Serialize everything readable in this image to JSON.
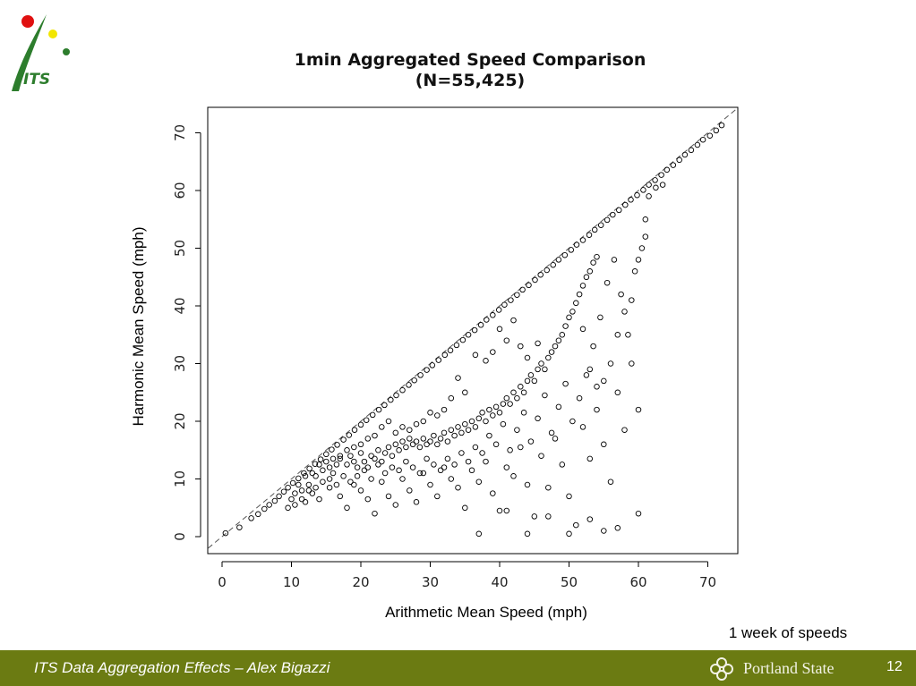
{
  "logo": {
    "text": "ITS"
  },
  "chart_data": {
    "type": "scatter",
    "title": "1min Aggregated Speed Comparison",
    "subtitle": "(N=55,425)",
    "xlabel": "Arithmetic Mean Speed (mph)",
    "ylabel": "Harmonic Mean Speed (mph)",
    "xlim": [
      -2,
      75
    ],
    "ylim": [
      -2,
      74
    ],
    "xticks": [
      0,
      10,
      20,
      30,
      40,
      50,
      60,
      70
    ],
    "yticks": [
      0,
      10,
      20,
      30,
      40,
      50,
      60,
      70
    ],
    "reference_line": "y = x (dashed)",
    "grid": false,
    "marker": "open circle",
    "points": [
      [
        0.5,
        0.6
      ],
      [
        2.5,
        1.6
      ],
      [
        4.2,
        3.2
      ],
      [
        5.2,
        3.9
      ],
      [
        6.1,
        4.8
      ],
      [
        6.8,
        5.5
      ],
      [
        7.6,
        6.2
      ],
      [
        8.2,
        7.0
      ],
      [
        8.9,
        7.8
      ],
      [
        9.5,
        8.5
      ],
      [
        10.2,
        9.3
      ],
      [
        11.0,
        10.1
      ],
      [
        11.8,
        11.0
      ],
      [
        12.6,
        11.8
      ],
      [
        13.4,
        12.6
      ],
      [
        14.2,
        13.4
      ],
      [
        15.0,
        14.3
      ],
      [
        15.8,
        15.1
      ],
      [
        16.6,
        15.9
      ],
      [
        17.5,
        16.8
      ],
      [
        18.3,
        17.6
      ],
      [
        19.1,
        18.5
      ],
      [
        20.0,
        19.4
      ],
      [
        20.8,
        20.2
      ],
      [
        21.7,
        21.1
      ],
      [
        22.6,
        22.0
      ],
      [
        23.4,
        22.8
      ],
      [
        24.3,
        23.7
      ],
      [
        25.1,
        24.5
      ],
      [
        26.0,
        25.4
      ],
      [
        26.9,
        26.3
      ],
      [
        27.7,
        27.1
      ],
      [
        28.6,
        28.0
      ],
      [
        29.5,
        28.9
      ],
      [
        30.3,
        29.7
      ],
      [
        31.2,
        30.6
      ],
      [
        32.1,
        31.5
      ],
      [
        32.9,
        32.3
      ],
      [
        33.8,
        33.2
      ],
      [
        34.7,
        34.1
      ],
      [
        35.5,
        35.0
      ],
      [
        36.4,
        35.8
      ],
      [
        37.3,
        36.7
      ],
      [
        38.1,
        37.6
      ],
      [
        39.0,
        38.4
      ],
      [
        39.9,
        39.3
      ],
      [
        40.7,
        40.2
      ],
      [
        41.6,
        41.0
      ],
      [
        42.5,
        41.9
      ],
      [
        43.3,
        42.8
      ],
      [
        44.2,
        43.6
      ],
      [
        45.1,
        44.5
      ],
      [
        45.9,
        45.4
      ],
      [
        46.8,
        46.2
      ],
      [
        47.7,
        47.1
      ],
      [
        48.5,
        48.0
      ],
      [
        49.4,
        48.8
      ],
      [
        50.3,
        49.7
      ],
      [
        51.1,
        50.6
      ],
      [
        52.0,
        51.4
      ],
      [
        52.9,
        52.3
      ],
      [
        53.7,
        53.2
      ],
      [
        54.6,
        54.0
      ],
      [
        55.5,
        54.9
      ],
      [
        56.3,
        55.8
      ],
      [
        57.2,
        56.6
      ],
      [
        58.1,
        57.5
      ],
      [
        58.9,
        58.4
      ],
      [
        59.8,
        59.2
      ],
      [
        60.7,
        60.1
      ],
      [
        61.5,
        61.0
      ],
      [
        62.4,
        61.8
      ],
      [
        63.3,
        62.7
      ],
      [
        64.1,
        63.6
      ],
      [
        65.0,
        64.4
      ],
      [
        65.9,
        65.3
      ],
      [
        66.7,
        66.2
      ],
      [
        67.6,
        67.0
      ],
      [
        68.5,
        67.9
      ],
      [
        69.3,
        68.8
      ],
      [
        70.3,
        69.5
      ],
      [
        71.2,
        70.4
      ],
      [
        72.0,
        71.3
      ],
      [
        10.5,
        7.5
      ],
      [
        11.5,
        8.0
      ],
      [
        12.5,
        9.0
      ],
      [
        13.5,
        10.5
      ],
      [
        14.5,
        11.5
      ],
      [
        15.5,
        12.0
      ],
      [
        16.0,
        11.0
      ],
      [
        16.5,
        12.5
      ],
      [
        17.0,
        13.5
      ],
      [
        18.0,
        12.5
      ],
      [
        18.5,
        14.0
      ],
      [
        19.0,
        13.0
      ],
      [
        19.5,
        12.0
      ],
      [
        20.0,
        14.5
      ],
      [
        20.5,
        13.0
      ],
      [
        21.0,
        12.0
      ],
      [
        21.5,
        14.0
      ],
      [
        22.0,
        13.5
      ],
      [
        22.5,
        15.0
      ],
      [
        23.0,
        13.0
      ],
      [
        23.5,
        14.5
      ],
      [
        24.0,
        15.5
      ],
      [
        24.5,
        14.0
      ],
      [
        25.0,
        16.0
      ],
      [
        25.5,
        15.0
      ],
      [
        26.0,
        16.5
      ],
      [
        26.5,
        15.5
      ],
      [
        27.0,
        17.0
      ],
      [
        27.5,
        16.0
      ],
      [
        28.0,
        16.5
      ],
      [
        28.5,
        15.5
      ],
      [
        29.0,
        17.0
      ],
      [
        29.5,
        16.0
      ],
      [
        30.0,
        16.5
      ],
      [
        30.5,
        17.5
      ],
      [
        31.0,
        16.0
      ],
      [
        31.5,
        17.0
      ],
      [
        32.0,
        18.0
      ],
      [
        32.5,
        16.5
      ],
      [
        33.0,
        18.5
      ],
      [
        33.5,
        17.5
      ],
      [
        34.0,
        19.0
      ],
      [
        34.5,
        18.0
      ],
      [
        35.0,
        19.5
      ],
      [
        35.5,
        18.5
      ],
      [
        36.0,
        20.0
      ],
      [
        36.5,
        19.0
      ],
      [
        37.0,
        20.5
      ],
      [
        37.5,
        21.5
      ],
      [
        38.0,
        20.0
      ],
      [
        38.5,
        22.0
      ],
      [
        39.0,
        21.0
      ],
      [
        39.5,
        22.5
      ],
      [
        40.0,
        21.5
      ],
      [
        40.5,
        23.0
      ],
      [
        41.0,
        24.0
      ],
      [
        41.5,
        23.0
      ],
      [
        42.0,
        25.0
      ],
      [
        42.5,
        24.0
      ],
      [
        43.0,
        26.0
      ],
      [
        43.5,
        25.0
      ],
      [
        44.0,
        27.0
      ],
      [
        44.5,
        28.0
      ],
      [
        45.0,
        27.0
      ],
      [
        45.5,
        29.0
      ],
      [
        46.0,
        30.0
      ],
      [
        46.5,
        29.0
      ],
      [
        47.0,
        31.0
      ],
      [
        47.5,
        32.0
      ],
      [
        48.0,
        33.0
      ],
      [
        48.5,
        34.0
      ],
      [
        49.0,
        35.0
      ],
      [
        49.5,
        36.5
      ],
      [
        50.0,
        38.0
      ],
      [
        50.5,
        39.0
      ],
      [
        51.0,
        40.5
      ],
      [
        51.5,
        42.0
      ],
      [
        52.0,
        43.5
      ],
      [
        52.5,
        45.0
      ],
      [
        53.0,
        46.0
      ],
      [
        53.5,
        47.5
      ],
      [
        54.0,
        48.5
      ],
      [
        44.0,
        31.0
      ],
      [
        43.0,
        33.0
      ],
      [
        42.0,
        37.5
      ],
      [
        45.5,
        33.5
      ],
      [
        41.0,
        34.0
      ],
      [
        40.0,
        36.0
      ],
      [
        39.0,
        32.0
      ],
      [
        38.0,
        30.5
      ],
      [
        36.5,
        31.5
      ],
      [
        35.0,
        25.0
      ],
      [
        34.0,
        27.5
      ],
      [
        33.0,
        24.0
      ],
      [
        32.0,
        22.0
      ],
      [
        31.0,
        21.0
      ],
      [
        30.0,
        21.5
      ],
      [
        29.0,
        20.0
      ],
      [
        28.0,
        19.5
      ],
      [
        27.0,
        18.5
      ],
      [
        26.0,
        19.0
      ],
      [
        25.0,
        18.0
      ],
      [
        24.0,
        20.0
      ],
      [
        23.0,
        19.0
      ],
      [
        22.0,
        17.5
      ],
      [
        21.0,
        17.0
      ],
      [
        20.0,
        16.0
      ],
      [
        19.0,
        15.5
      ],
      [
        18.0,
        15.0
      ],
      [
        17.0,
        14.0
      ],
      [
        16.0,
        13.5
      ],
      [
        15.0,
        13.0
      ],
      [
        14.0,
        12.5
      ],
      [
        13.0,
        11.0
      ],
      [
        12.0,
        10.5
      ],
      [
        11.0,
        9.0
      ],
      [
        10.0,
        6.5
      ],
      [
        9.5,
        5.0
      ],
      [
        12.0,
        6.0
      ],
      [
        13.0,
        7.5
      ],
      [
        14.0,
        6.5
      ],
      [
        15.5,
        8.5
      ],
      [
        17.0,
        7.0
      ],
      [
        18.0,
        5.0
      ],
      [
        19.0,
        9.0
      ],
      [
        20.0,
        8.0
      ],
      [
        21.0,
        6.5
      ],
      [
        22.0,
        4.0
      ],
      [
        23.0,
        9.5
      ],
      [
        24.0,
        7.0
      ],
      [
        25.0,
        5.5
      ],
      [
        26.0,
        10.0
      ],
      [
        27.0,
        8.0
      ],
      [
        28.0,
        6.0
      ],
      [
        29.0,
        11.0
      ],
      [
        30.0,
        9.0
      ],
      [
        31.0,
        7.0
      ],
      [
        32.0,
        12.0
      ],
      [
        33.0,
        10.0
      ],
      [
        34.0,
        8.5
      ],
      [
        35.0,
        5.0
      ],
      [
        36.0,
        11.5
      ],
      [
        37.0,
        9.5
      ],
      [
        38.0,
        13.0
      ],
      [
        39.0,
        7.5
      ],
      [
        40.0,
        4.5
      ],
      [
        41.0,
        12.0
      ],
      [
        42.0,
        10.5
      ],
      [
        43.0,
        15.5
      ],
      [
        44.0,
        9.0
      ],
      [
        45.0,
        3.5
      ],
      [
        46.0,
        14.0
      ],
      [
        47.0,
        8.5
      ],
      [
        48.0,
        17.0
      ],
      [
        49.0,
        12.5
      ],
      [
        50.0,
        7.0
      ],
      [
        51.0,
        2.0
      ],
      [
        52.0,
        19.0
      ],
      [
        53.0,
        13.5
      ],
      [
        54.0,
        22.0
      ],
      [
        55.0,
        16.0
      ],
      [
        56.0,
        9.5
      ],
      [
        57.0,
        25.0
      ],
      [
        58.0,
        18.5
      ],
      [
        59.0,
        30.0
      ],
      [
        60.0,
        22.0
      ],
      [
        58.5,
        35.0
      ],
      [
        57.5,
        42.0
      ],
      [
        59.5,
        46.0
      ],
      [
        60.5,
        50.0
      ],
      [
        61.0,
        55.0
      ],
      [
        56.5,
        48.0
      ],
      [
        55.5,
        44.0
      ],
      [
        54.5,
        38.0
      ],
      [
        53.5,
        33.0
      ],
      [
        52.5,
        28.0
      ],
      [
        51.5,
        24.0
      ],
      [
        50.5,
        20.0
      ],
      [
        49.5,
        26.5
      ],
      [
        48.5,
        22.5
      ],
      [
        47.5,
        18.0
      ],
      [
        46.5,
        24.5
      ],
      [
        45.5,
        20.5
      ],
      [
        44.5,
        16.5
      ],
      [
        43.5,
        21.5
      ],
      [
        42.5,
        18.5
      ],
      [
        41.5,
        15.0
      ],
      [
        40.5,
        19.5
      ],
      [
        39.5,
        16.0
      ],
      [
        38.5,
        17.5
      ],
      [
        37.5,
        14.5
      ],
      [
        36.5,
        15.5
      ],
      [
        35.5,
        13.0
      ],
      [
        34.5,
        14.5
      ],
      [
        33.5,
        12.5
      ],
      [
        32.5,
        13.5
      ],
      [
        31.5,
        11.5
      ],
      [
        30.5,
        12.5
      ],
      [
        29.5,
        13.5
      ],
      [
        28.5,
        11.0
      ],
      [
        27.5,
        12.0
      ],
      [
        26.5,
        13.0
      ],
      [
        25.5,
        11.5
      ],
      [
        24.5,
        12.0
      ],
      [
        23.5,
        11.0
      ],
      [
        22.5,
        12.5
      ],
      [
        21.5,
        10.0
      ],
      [
        20.5,
        11.5
      ],
      [
        19.5,
        10.5
      ],
      [
        18.5,
        9.5
      ],
      [
        17.5,
        10.5
      ],
      [
        16.5,
        9.0
      ],
      [
        15.5,
        10.0
      ],
      [
        14.5,
        9.5
      ],
      [
        13.5,
        8.5
      ],
      [
        12.5,
        8.0
      ],
      [
        11.5,
        6.5
      ],
      [
        10.5,
        5.5
      ],
      [
        60.0,
        4.0
      ],
      [
        57.0,
        1.5
      ],
      [
        55.0,
        1.0
      ],
      [
        53.0,
        3.0
      ],
      [
        50.0,
        0.5
      ],
      [
        47.0,
        3.5
      ],
      [
        44.0,
        0.5
      ],
      [
        37.0,
        0.5
      ],
      [
        41.0,
        4.5
      ],
      [
        61.5,
        59.0
      ],
      [
        62.5,
        60.5
      ],
      [
        63.5,
        61.0
      ],
      [
        61.0,
        52.0
      ],
      [
        60.0,
        48.0
      ],
      [
        59.0,
        41.0
      ],
      [
        58.0,
        39.0
      ],
      [
        57.0,
        35.0
      ],
      [
        56.0,
        30.0
      ],
      [
        55.0,
        27.0
      ],
      [
        54.0,
        26.0
      ],
      [
        53.0,
        29.0
      ],
      [
        52.0,
        36.0
      ]
    ]
  },
  "note": "1 week of speeds",
  "footer": {
    "text": "ITS Data Aggregation Effects – Alex Bigazzi",
    "org": "Portland State",
    "page_number": "12"
  },
  "colors": {
    "footer_bg": "#6b7b12",
    "logo_green": "#2d7d2d",
    "logo_red": "#e01010",
    "logo_yellow": "#f2e600"
  }
}
